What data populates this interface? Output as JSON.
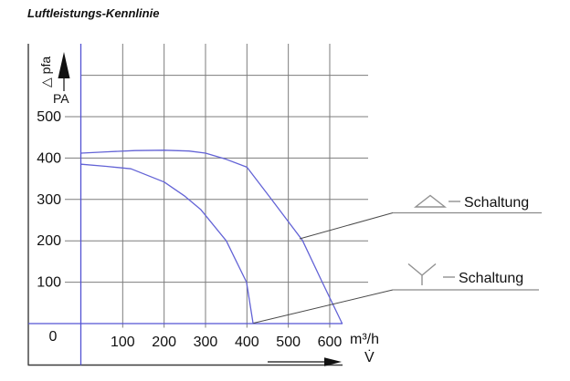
{
  "title": "Luftleistungs-Kennlinie",
  "colors": {
    "curve": "#6363d6",
    "axis_blue": "#5353d4",
    "grid": "#7d7d7d",
    "leader": "#4a4a4a",
    "legend_symbol": "#919191",
    "text": "#111111"
  },
  "y_axis": {
    "label": "△ pfa",
    "unit": "PA"
  },
  "x_axis": {
    "unit": "m³/h",
    "flow_symbol": "V̇"
  },
  "legend": [
    {
      "symbol": "delta-triangle",
      "label": "Schaltung"
    },
    {
      "symbol": "star-wye",
      "label": "Schaltung"
    }
  ],
  "chart_data": {
    "type": "line",
    "title": "Luftleistungs-Kennlinie",
    "xlabel": "V̇ (m³/h)",
    "ylabel": "△pfa (PA)",
    "xlim": [
      0,
      693
    ],
    "ylim": [
      0,
      676
    ],
    "x_ticks": [
      100,
      200,
      300,
      400,
      500,
      600
    ],
    "y_ticks": [
      0,
      100,
      200,
      300,
      400,
      500
    ],
    "y_gridlines": [
      100,
      200,
      300,
      400,
      500,
      600
    ],
    "grid": true,
    "legend_position": "right",
    "series": [
      {
        "name": "△ – Schaltung",
        "points": [
          [
            0,
            412
          ],
          [
            60,
            415
          ],
          [
            130,
            418
          ],
          [
            200,
            419
          ],
          [
            260,
            417
          ],
          [
            300,
            412
          ],
          [
            350,
            397
          ],
          [
            400,
            378
          ],
          [
            458,
            302
          ],
          [
            534,
            201
          ],
          [
            582,
            100
          ],
          [
            630,
            0
          ]
        ]
      },
      {
        "name": "Y – Schaltung",
        "points": [
          [
            0,
            385
          ],
          [
            60,
            380
          ],
          [
            120,
            374
          ],
          [
            200,
            342
          ],
          [
            250,
            308
          ],
          [
            288,
            276
          ],
          [
            350,
            200
          ],
          [
            399,
            100
          ],
          [
            415,
            0
          ]
        ]
      }
    ]
  }
}
